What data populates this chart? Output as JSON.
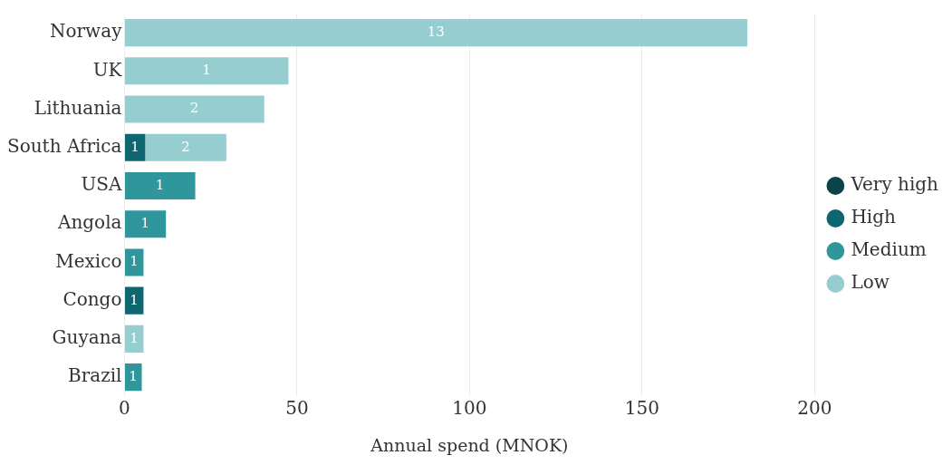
{
  "chart_data": {
    "type": "bar",
    "orientation": "horizontal",
    "stacked": true,
    "categories": [
      "Norway",
      "UK",
      "Lithuania",
      "South Africa",
      "USA",
      "Angola",
      "Mexico",
      "Congo",
      "Guyana",
      "Brazil"
    ],
    "series": [
      {
        "name": "Very high",
        "color": "#0b434a",
        "values": [
          null,
          null,
          null,
          null,
          null,
          null,
          null,
          null,
          null,
          null
        ]
      },
      {
        "name": "High",
        "color": "#0e6670",
        "values": [
          null,
          null,
          null,
          6,
          null,
          null,
          null,
          5.5,
          null,
          null
        ]
      },
      {
        "name": "Medium",
        "color": "#2f979c",
        "values": [
          null,
          null,
          null,
          null,
          20.5,
          12,
          5.5,
          null,
          null,
          5
        ]
      },
      {
        "name": "Low",
        "color": "#96cdd0",
        "values": [
          180.5,
          47.5,
          40.5,
          23.5,
          null,
          null,
          null,
          null,
          5.5,
          null
        ]
      }
    ],
    "annotations": [
      {
        "text": "13",
        "x": 90.25,
        "y": "Norway"
      },
      {
        "text": "1",
        "x": 23.75,
        "y": "UK"
      },
      {
        "text": "2",
        "x": 20.25,
        "y": "Lithuania"
      },
      {
        "text": "1",
        "x": 3,
        "y": "South Africa"
      },
      {
        "text": "2",
        "x": 17.75,
        "y": "South Africa"
      },
      {
        "text": "1",
        "x": 10.25,
        "y": "USA"
      },
      {
        "text": "1",
        "x": 6,
        "y": "Angola"
      },
      {
        "text": "1",
        "x": 2.75,
        "y": "Mexico"
      },
      {
        "text": "1",
        "x": 2.75,
        "y": "Congo"
      },
      {
        "text": "1",
        "x": 2.75,
        "y": "Guyana"
      },
      {
        "text": "1",
        "x": 2.5,
        "y": "Brazil"
      }
    ],
    "xlabel": "Annual spend (MNOK)",
    "xlim": [
      0,
      200
    ],
    "xticks": [
      0,
      50,
      100,
      150,
      200
    ],
    "grid": "x",
    "legend": "right"
  }
}
